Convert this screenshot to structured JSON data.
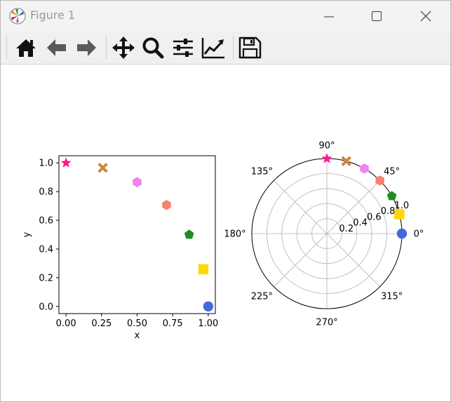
{
  "window": {
    "title": "Figure 1",
    "icon": "matplotlib-logo-icon",
    "controls": [
      "minimize-icon",
      "maximize-icon",
      "close-icon"
    ]
  },
  "toolbar": {
    "buttons": [
      "home-icon",
      "back-arrow-icon",
      "forward-arrow-icon",
      "pan-icon",
      "zoom-icon",
      "subplots-config-icon",
      "edit-axes-icon",
      "save-icon"
    ]
  },
  "chart_data": [
    {
      "type": "scatter",
      "title": "",
      "xlabel": "x",
      "ylabel": "y",
      "xlim": [
        -0.05,
        1.05
      ],
      "ylim": [
        -0.05,
        1.05
      ],
      "xticks": [
        "0.00",
        "0.25",
        "0.50",
        "0.75",
        "1.00"
      ],
      "yticks": [
        "0.0",
        "0.2",
        "0.4",
        "0.6",
        "0.8",
        "1.0"
      ],
      "grid": false,
      "points": [
        {
          "x": 1.0,
          "y": 0.0,
          "marker": "circle",
          "color": "#4169e1"
        },
        {
          "x": 0.966,
          "y": 0.259,
          "marker": "square",
          "color": "#ffd700"
        },
        {
          "x": 0.866,
          "y": 0.5,
          "marker": "pentagon",
          "color": "#228b22"
        },
        {
          "x": 0.707,
          "y": 0.707,
          "marker": "hexagon",
          "color": "#fa8072"
        },
        {
          "x": 0.5,
          "y": 0.866,
          "marker": "hexagon",
          "color": "#ee82ee"
        },
        {
          "x": 0.259,
          "y": 0.966,
          "marker": "x-filled",
          "color": "#cd853f"
        },
        {
          "x": 0.0,
          "y": 1.0,
          "marker": "star",
          "color": "#ff1493"
        }
      ]
    },
    {
      "type": "scatter",
      "projection": "polar",
      "title": "",
      "rmax": 1.0,
      "rticks": [
        "0.2",
        "0.4",
        "0.6",
        "0.8",
        "1.0"
      ],
      "thetaticks": [
        "0°",
        "45°",
        "90°",
        "135°",
        "180°",
        "225°",
        "270°",
        "315°"
      ],
      "grid": true,
      "points": [
        {
          "theta_deg": 0,
          "r": 1.0,
          "marker": "circle",
          "color": "#4169e1"
        },
        {
          "theta_deg": 15,
          "r": 1.0,
          "marker": "square",
          "color": "#ffd700"
        },
        {
          "theta_deg": 30,
          "r": 1.0,
          "marker": "pentagon",
          "color": "#228b22"
        },
        {
          "theta_deg": 45,
          "r": 1.0,
          "marker": "hexagon",
          "color": "#fa8072"
        },
        {
          "theta_deg": 60,
          "r": 1.0,
          "marker": "hexagon",
          "color": "#ee82ee"
        },
        {
          "theta_deg": 75,
          "r": 1.0,
          "marker": "x-filled",
          "color": "#cd853f"
        },
        {
          "theta_deg": 90,
          "r": 1.0,
          "marker": "star",
          "color": "#ff1493"
        }
      ]
    }
  ]
}
